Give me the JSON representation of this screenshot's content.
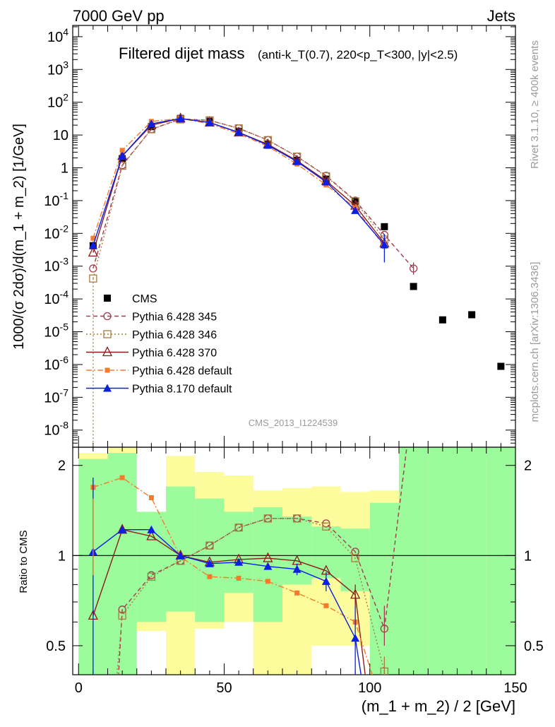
{
  "header": {
    "left": "7000 GeV pp",
    "right": "Jets"
  },
  "side_labels": {
    "rivet": "Rivet 3.1.10, ≥ 400k events",
    "mcplots": "mcplots.cern.ch [arXiv:1306.3436]"
  },
  "analysis_id": "CMS_2013_I1224539",
  "chart_data": [
    {
      "type": "scatter",
      "panel": "main",
      "title": "Filtered dijet mass",
      "subtitle": "(anti-k_T(0.7), 220<p_T<300, |y|<2.5)",
      "ylabel": "1000/(σ 2dσ)/d(m_1 + m_2) [1/GeV]",
      "xlabel": "(m_1 + m_2) / 2 [GeV]",
      "x_ticks": [
        0,
        50,
        100,
        150
      ],
      "xlim": [
        -2,
        150
      ],
      "y_log": true,
      "ylim": [
        3e-09,
        22000.0
      ],
      "y_tick_labels": [
        "10^-8",
        "10^-7",
        "10^-6",
        "10^-5",
        "10^-4",
        "10^-3",
        "10^-2",
        "10^-1",
        "1",
        "10",
        "10^2",
        "10^3",
        "10^4"
      ],
      "legend_position": "bottom-left",
      "series": [
        {
          "name": "CMS",
          "color": "#000000",
          "marker": "filled-square",
          "line": "none",
          "x": [
            5,
            15,
            25,
            35,
            45,
            55,
            65,
            75,
            85,
            95,
            105,
            115,
            125,
            135,
            145
          ],
          "y": [
            0.0042,
            1.9,
            18,
            32,
            26,
            13,
            5.3,
            1.7,
            0.45,
            0.095,
            0.016,
            0.00024,
            2.3e-05,
            3.3e-05,
            8.8e-07
          ]
        },
        {
          "name": "Pythia 6.428 345",
          "color": "#a23a4e",
          "marker": "open-circle",
          "line": "dashed",
          "x": [
            5,
            15,
            25,
            35,
            45,
            55,
            65,
            75,
            85,
            95,
            105,
            115
          ],
          "y": [
            0.00085,
            1.2,
            15,
            31,
            28,
            16,
            7.0,
            2.2,
            0.57,
            0.1,
            0.009,
            0.00085
          ]
        },
        {
          "name": "Pythia 6.428 346",
          "color": "#a67c40",
          "marker": "open-square",
          "line": "dotted",
          "x": [
            5,
            15,
            25,
            35,
            45,
            55,
            65,
            75,
            85,
            95,
            105
          ],
          "y": [
            0.00042,
            1.15,
            15,
            30,
            28,
            16,
            7.0,
            2.2,
            0.55,
            0.095,
            0.0065
          ]
        },
        {
          "name": "Pythia 6.428 370",
          "color": "#8a1c1c",
          "marker": "open-triangle",
          "line": "solid",
          "x": [
            5,
            15,
            25,
            35,
            45,
            55,
            65,
            75,
            85,
            95,
            105
          ],
          "y": [
            0.0026,
            2.3,
            20,
            32,
            24,
            12,
            5.2,
            1.65,
            0.4,
            0.07,
            0.005
          ]
        },
        {
          "name": "Pythia 6.428 default",
          "color": "#f57b2a",
          "marker": "filled-square-small",
          "line": "dashdot",
          "x": [
            5,
            15,
            25,
            35,
            45,
            55,
            65,
            75,
            85,
            95,
            105
          ],
          "y": [
            0.0071,
            3.4,
            26,
            32,
            22,
            11,
            4.5,
            1.3,
            0.3,
            0.06,
            0.004
          ]
        },
        {
          "name": "Pythia 8.170 default",
          "color": "#0a1ee6",
          "marker": "filled-triangle",
          "line": "solid",
          "x": [
            5,
            15,
            25,
            35,
            45,
            55,
            65,
            75,
            85,
            95,
            105
          ],
          "y": [
            0.0043,
            2.3,
            22,
            32,
            24,
            12,
            4.9,
            1.55,
            0.37,
            0.05,
            0.0045
          ]
        }
      ]
    },
    {
      "type": "line",
      "panel": "ratio",
      "ylabel": "Ratio to CMS",
      "ylim": [
        0.4,
        2.3
      ],
      "y_tick_labels": [
        "0.5",
        "1",
        "2"
      ],
      "reference_line": 1,
      "bands": {
        "edges": [
          0,
          10,
          20,
          30,
          40,
          50,
          60,
          70,
          80,
          90,
          100,
          110,
          120,
          130,
          140,
          150
        ],
        "stat_green": [
          [
            0.35,
            2.1
          ],
          [
            0.35,
            2.2
          ],
          [
            0.6,
            1.4
          ],
          [
            0.65,
            1.7
          ],
          [
            0.6,
            1.55
          ],
          [
            0.75,
            1.4
          ],
          [
            0.6,
            1.45
          ],
          [
            0.8,
            1.35
          ],
          [
            0.84,
            1.25
          ],
          [
            0.76,
            1.23
          ],
          [
            0.4,
            1.5
          ],
          [
            0.35,
            2.6
          ],
          [
            0.35,
            2.6
          ],
          [
            0.35,
            2.6
          ],
          [
            0.35,
            2.6
          ]
        ],
        "total_yellow": [
          [
            0.35,
            2.2
          ],
          [
            0.35,
            2.3
          ],
          [
            0.56,
            1.25
          ],
          [
            0.4,
            2.15
          ],
          [
            0.57,
            1.9
          ],
          [
            0.6,
            1.85
          ],
          [
            0.4,
            1.65
          ],
          [
            0.4,
            1.68
          ],
          [
            0.5,
            1.7
          ],
          [
            0.5,
            1.63
          ],
          [
            0.35,
            1.65
          ],
          [
            0.35,
            2.6
          ],
          [
            0.45,
            2.2
          ],
          [
            0.44,
            2.05
          ],
          [
            0.35,
            2.6
          ]
        ]
      },
      "series": [
        {
          "name": "Pythia 6.428 345",
          "x": [
            13,
            15,
            25,
            35,
            45,
            55,
            65,
            75,
            85,
            95,
            105,
            115
          ],
          "y": [
            0.3,
            0.66,
            0.86,
            0.96,
            1.08,
            1.24,
            1.33,
            1.33,
            1.28,
            1.03,
            0.57,
            3.5
          ]
        },
        {
          "name": "Pythia 6.428 346",
          "x": [
            12,
            15,
            25,
            35,
            45,
            55,
            65,
            75,
            85,
            95,
            105,
            108
          ],
          "y": [
            0.3,
            0.63,
            0.85,
            0.96,
            1.08,
            1.24,
            1.33,
            1.33,
            1.25,
            0.98,
            0.41,
            0.3
          ]
        },
        {
          "name": "Pythia 6.428 370",
          "x": [
            5,
            15,
            25,
            35,
            45,
            55,
            65,
            75,
            85,
            95,
            100
          ],
          "y": [
            0.63,
            1.22,
            1.16,
            1.0,
            0.95,
            0.97,
            0.98,
            0.96,
            0.89,
            0.74,
            0.3
          ]
        },
        {
          "name": "Pythia 6.428 default",
          "x": [
            5,
            15,
            25,
            35,
            45,
            55,
            65,
            75,
            85,
            95,
            105
          ],
          "y": [
            1.69,
            1.82,
            1.56,
            0.99,
            0.85,
            0.84,
            0.82,
            0.75,
            0.68,
            0.6,
            0.3
          ]
        },
        {
          "name": "Pythia 8.170 default",
          "x": [
            5,
            15,
            25,
            35,
            45,
            55,
            65,
            75,
            85,
            95,
            99
          ],
          "y": [
            1.03,
            1.22,
            1.22,
            1.0,
            0.94,
            0.95,
            0.92,
            0.9,
            0.82,
            0.53,
            0.3
          ]
        }
      ]
    }
  ]
}
